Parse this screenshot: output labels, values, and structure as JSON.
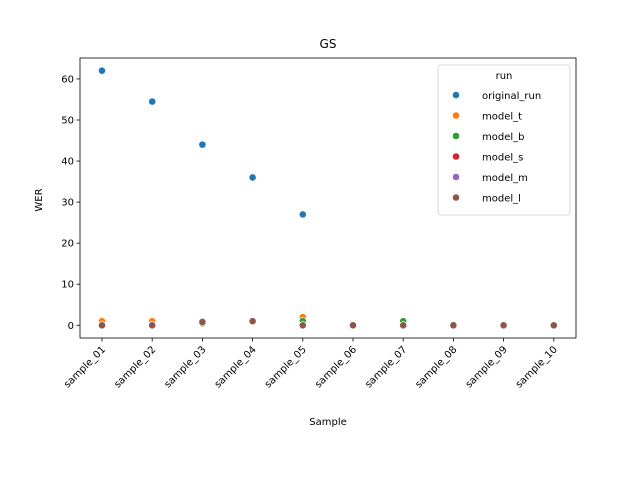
{
  "chart_data": {
    "type": "scatter",
    "title": "GS",
    "xlabel": "Sample",
    "ylabel": "WER",
    "categories": [
      "sample_01",
      "sample_02",
      "sample_03",
      "sample_04",
      "sample_05",
      "sample_06",
      "sample_07",
      "sample_08",
      "sample_09",
      "sample_10"
    ],
    "ylim": [
      -3.1,
      65.1
    ],
    "yticks": [
      0,
      10,
      20,
      30,
      40,
      50,
      60
    ],
    "grid": false,
    "legend": {
      "title": "run",
      "placement": "upper right"
    },
    "series": [
      {
        "name": "original_run",
        "color": "#1f77b4",
        "values": [
          62.0,
          54.5,
          44.0,
          36.0,
          27.0,
          null,
          null,
          null,
          null,
          null
        ]
      },
      {
        "name": "model_t",
        "color": "#ff7f0e",
        "values": [
          1.0,
          1.0,
          1.0,
          1.0,
          2.0,
          0.0,
          0.0,
          0.0,
          0.0,
          0.0
        ]
      },
      {
        "name": "model_b",
        "color": "#2ca02c",
        "values": [
          0.0,
          0.0,
          0.5,
          1.0,
          1.0,
          0.0,
          1.0,
          0.0,
          0.0,
          0.0
        ]
      },
      {
        "name": "model_s",
        "color": "#d62728",
        "values": [
          0.0,
          0.0,
          1.0,
          1.0,
          0.0,
          0.0,
          0.0,
          0.0,
          0.0,
          0.0
        ]
      },
      {
        "name": "model_m",
        "color": "#9467bd",
        "values": [
          0.0,
          0.0,
          1.0,
          1.0,
          0.0,
          0.0,
          0.0,
          0.0,
          0.0,
          0.0
        ]
      },
      {
        "name": "model_l",
        "color": "#8c564b",
        "values": [
          0.0,
          0.0,
          0.8,
          1.0,
          0.0,
          0.0,
          0.0,
          0.0,
          0.0,
          0.0
        ]
      }
    ]
  }
}
